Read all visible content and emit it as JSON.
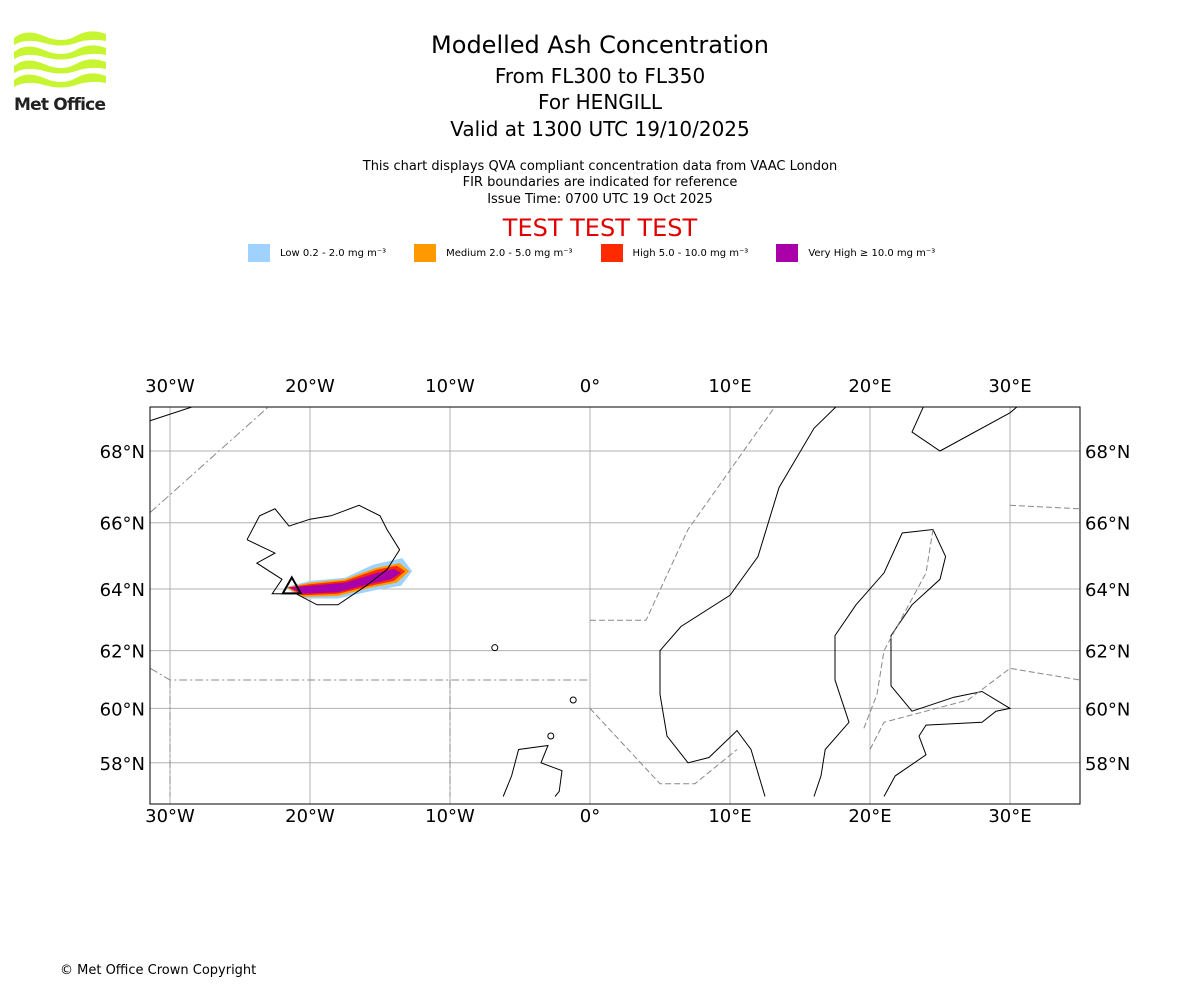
{
  "logo": {
    "text": "Met Office"
  },
  "header": {
    "title": "Modelled Ash Concentration",
    "levels": "From FL300 to FL350",
    "volcano": "For HENGILL",
    "valid": "Valid at 1300 UTC 19/10/2025",
    "note1": "This chart displays QVA compliant concentration data from VAAC London",
    "note2": "FIR boundaries are indicated for reference",
    "issue": "Issue Time: 0700 UTC 19 Oct 2025",
    "test": "TEST TEST TEST"
  },
  "legend": [
    {
      "label": "Low 0.2 - 2.0 mg m⁻³",
      "color": "#a0d2ff"
    },
    {
      "label": "Medium 2.0 - 5.0 mg m⁻³",
      "color": "#ff9900"
    },
    {
      "label": "High 5.0 - 10.0 mg m⁻³",
      "color": "#ff2a00"
    },
    {
      "label": "Very High ≥ 10.0 mg m⁻³",
      "color": "#aa00aa"
    }
  ],
  "chart_data": {
    "type": "map",
    "projection": "mercator",
    "lon_range": [
      -31.4,
      35
    ],
    "lat_range": [
      56.7,
      69.3
    ],
    "lon_ticks": [
      -30,
      -20,
      -10,
      0,
      10,
      20,
      30
    ],
    "lon_labels": [
      "30°W",
      "20°W",
      "10°W",
      "0°",
      "10°E",
      "20°E",
      "30°E"
    ],
    "lat_ticks": [
      68,
      66,
      64,
      62,
      60,
      58
    ],
    "lat_labels": [
      "68°N",
      "66°N",
      "64°N",
      "62°N",
      "60°N",
      "58°N"
    ],
    "grid": true,
    "ash_contours": [
      {
        "level": "Low",
        "points": [
          [
            -21.8,
            64.05
          ],
          [
            -20,
            64.25
          ],
          [
            -17.5,
            64.35
          ],
          [
            -15.5,
            64.75
          ],
          [
            -13.4,
            64.95
          ],
          [
            -12.7,
            64.55
          ],
          [
            -13.5,
            64.1
          ],
          [
            -15.5,
            63.95
          ],
          [
            -18,
            63.7
          ],
          [
            -20.5,
            63.7
          ]
        ]
      },
      {
        "level": "Medium",
        "points": [
          [
            -21.7,
            64.05
          ],
          [
            -20,
            64.2
          ],
          [
            -17.5,
            64.3
          ],
          [
            -15.3,
            64.65
          ],
          [
            -13.6,
            64.8
          ],
          [
            -12.9,
            64.55
          ],
          [
            -13.8,
            64.2
          ],
          [
            -15.6,
            64.05
          ],
          [
            -18,
            63.78
          ],
          [
            -20.5,
            63.75
          ]
        ]
      },
      {
        "level": "High",
        "points": [
          [
            -21.6,
            64.05
          ],
          [
            -20,
            64.15
          ],
          [
            -17.5,
            64.25
          ],
          [
            -15.2,
            64.6
          ],
          [
            -13.8,
            64.72
          ],
          [
            -13.2,
            64.55
          ],
          [
            -14,
            64.25
          ],
          [
            -15.7,
            64.1
          ],
          [
            -18,
            63.85
          ],
          [
            -20.5,
            63.8
          ]
        ]
      },
      {
        "level": "Very High",
        "points": [
          [
            -21.5,
            64.05
          ],
          [
            -20,
            64.1
          ],
          [
            -17.5,
            64.2
          ],
          [
            -15.2,
            64.5
          ],
          [
            -14,
            64.62
          ],
          [
            -13.5,
            64.5
          ],
          [
            -14.2,
            64.3
          ],
          [
            -15.8,
            64.15
          ],
          [
            -18,
            63.9
          ],
          [
            -20.5,
            63.85
          ]
        ]
      }
    ]
  },
  "footer": {
    "copyright": "© Met Office Crown Copyright"
  }
}
